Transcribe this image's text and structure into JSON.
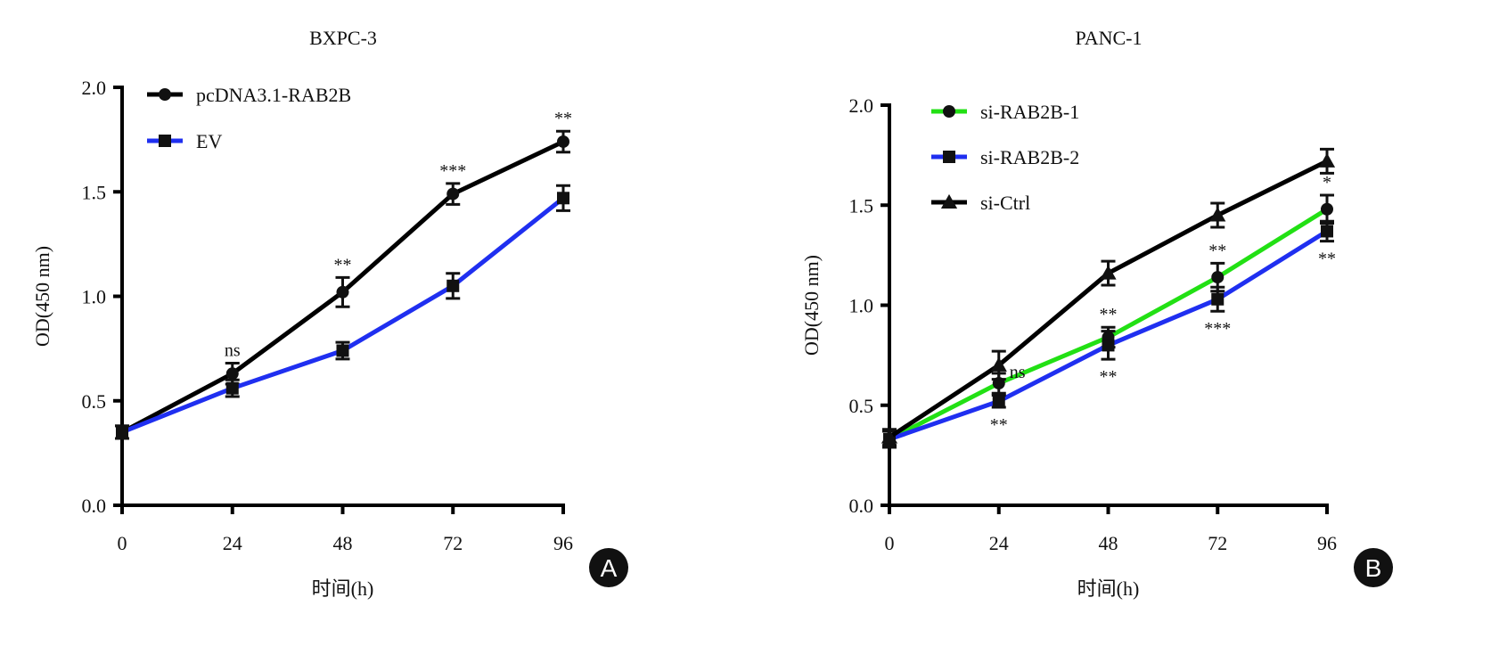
{
  "chart_data": [
    {
      "type": "line",
      "panel_label": "A",
      "title": "BXPC-3",
      "xlabel": "时间(h)",
      "ylabel": "OD(450 nm)",
      "x": [
        0,
        24,
        48,
        72,
        96
      ],
      "xticks": [
        "0",
        "24",
        "48",
        "72",
        "96"
      ],
      "yticks": [
        "0.0",
        "0.5",
        "1.0",
        "1.5",
        "2.0"
      ],
      "ylim": [
        0,
        2.0
      ],
      "legend_position": "top-left",
      "series": [
        {
          "name": "pcDNA3.1-RAB2B",
          "color": "#000000",
          "marker": "circle",
          "values": [
            0.35,
            0.63,
            1.02,
            1.49,
            1.74
          ],
          "err": [
            0.03,
            0.05,
            0.07,
            0.05,
            0.05
          ]
        },
        {
          "name": "EV",
          "color": "#1f2ff0",
          "marker": "square",
          "values": [
            0.35,
            0.56,
            0.74,
            1.05,
            1.47
          ],
          "err": [
            0.03,
            0.04,
            0.04,
            0.06,
            0.06
          ]
        }
      ],
      "annotations": [
        {
          "x": 24,
          "text": "ns",
          "series": 0,
          "pos": "above"
        },
        {
          "x": 48,
          "text": "**",
          "series": 0,
          "pos": "above"
        },
        {
          "x": 72,
          "text": "***",
          "series": 0,
          "pos": "above"
        },
        {
          "x": 96,
          "text": "**",
          "series": 0,
          "pos": "above"
        }
      ]
    },
    {
      "type": "line",
      "panel_label": "B",
      "title": "PANC-1",
      "xlabel": "时间(h)",
      "ylabel": "OD(450 nm)",
      "x": [
        0,
        24,
        48,
        72,
        96
      ],
      "xticks": [
        "0",
        "24",
        "48",
        "72",
        "96"
      ],
      "yticks": [
        "0.0",
        "0.5",
        "1.0",
        "1.5",
        "2.0"
      ],
      "ylim": [
        0,
        2.0
      ],
      "legend_position": "top-left",
      "series": [
        {
          "name": "si-RAB2B-1",
          "color": "#22e014",
          "marker": "circle",
          "values": [
            0.33,
            0.61,
            0.84,
            1.14,
            1.48
          ],
          "err": [
            0.04,
            0.05,
            0.05,
            0.07,
            0.07
          ]
        },
        {
          "name": "si-RAB2B-2",
          "color": "#1f2ff0",
          "marker": "square",
          "values": [
            0.33,
            0.52,
            0.8,
            1.03,
            1.37
          ],
          "err": [
            0.04,
            0.03,
            0.07,
            0.06,
            0.05
          ]
        },
        {
          "name": "si-Ctrl",
          "color": "#000000",
          "marker": "triangle",
          "values": [
            0.34,
            0.7,
            1.16,
            1.45,
            1.72
          ],
          "err": [
            0.04,
            0.07,
            0.06,
            0.06,
            0.06
          ]
        }
      ],
      "annotations": [
        {
          "x": 24,
          "text": "ns",
          "series": 2,
          "pos": "right"
        },
        {
          "x": 24,
          "text": "**",
          "series": 1,
          "pos": "below"
        },
        {
          "x": 48,
          "text": "**",
          "series": 0,
          "pos": "above"
        },
        {
          "x": 48,
          "text": "**",
          "series": 1,
          "pos": "below"
        },
        {
          "x": 72,
          "text": "**",
          "series": 0,
          "pos": "above"
        },
        {
          "x": 72,
          "text": "***",
          "series": 1,
          "pos": "below"
        },
        {
          "x": 96,
          "text": "*",
          "series": 0,
          "pos": "above"
        },
        {
          "x": 96,
          "text": "**",
          "series": 1,
          "pos": "below"
        }
      ]
    }
  ]
}
